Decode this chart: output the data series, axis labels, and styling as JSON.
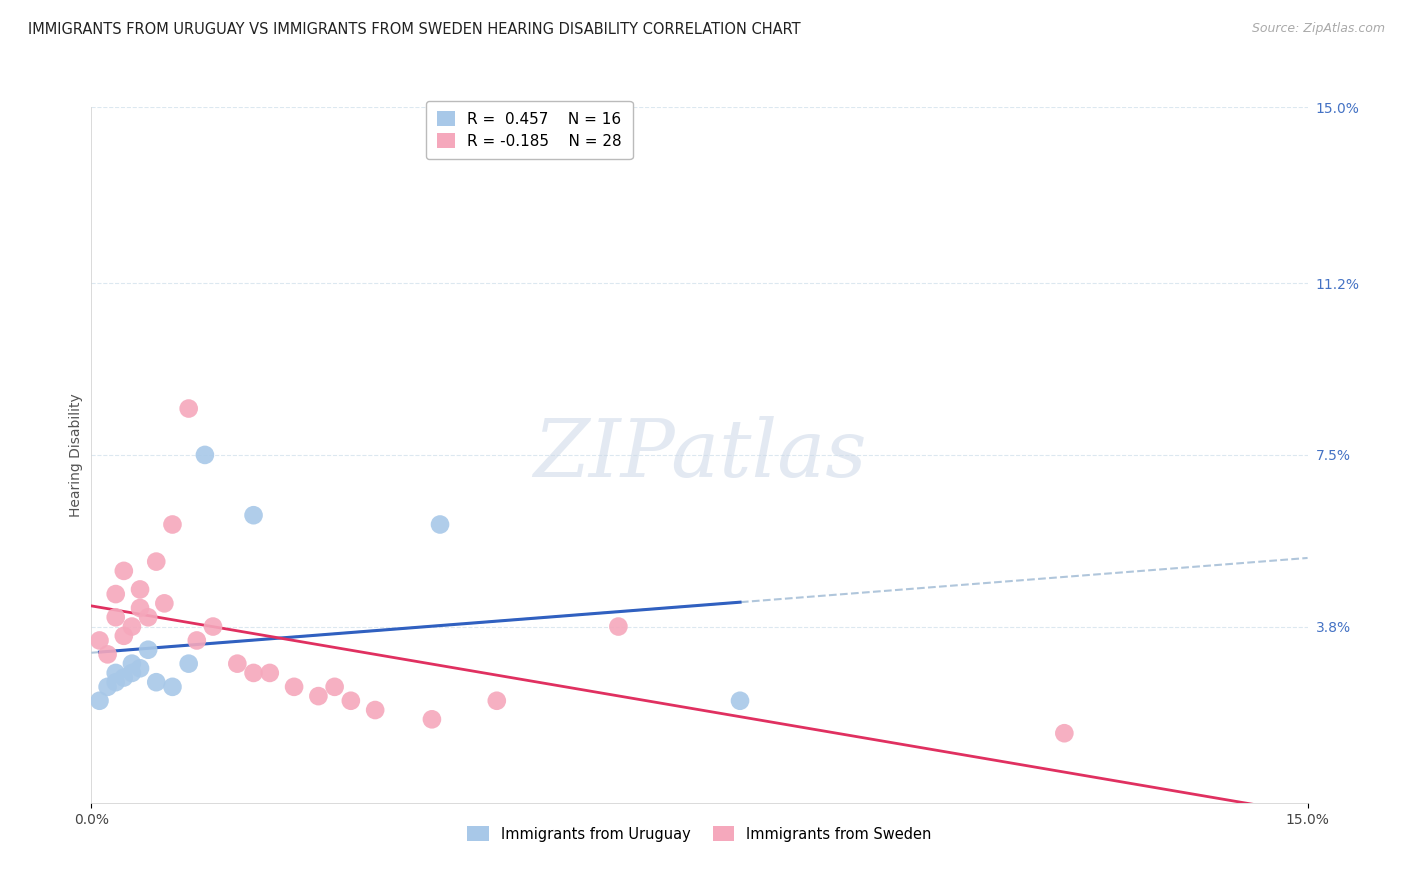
{
  "title": "IMMIGRANTS FROM URUGUAY VS IMMIGRANTS FROM SWEDEN HEARING DISABILITY CORRELATION CHART",
  "source_text": "Source: ZipAtlas.com",
  "ylabel": "Hearing Disability",
  "xlim": [
    0.0,
    0.15
  ],
  "ylim": [
    0.0,
    0.15
  ],
  "xtick_positions": [
    0.0,
    0.15
  ],
  "xtick_labels": [
    "0.0%",
    "15.0%"
  ],
  "ytick_positions_right": [
    0.038,
    0.075,
    0.112,
    0.15
  ],
  "ytick_labels_right": [
    "3.8%",
    "7.5%",
    "11.2%",
    "15.0%"
  ],
  "legend_top_labels": [
    "R =  0.457    N = 16",
    "R = -0.185    N = 28"
  ],
  "legend_top_colors": [
    "#a8c8e8",
    "#f5a8bc"
  ],
  "legend_bottom_labels": [
    "Immigrants from Uruguay",
    "Immigrants from Sweden"
  ],
  "legend_bottom_colors": [
    "#a8c8e8",
    "#f5a8bc"
  ],
  "uruguay_x": [
    0.001,
    0.002,
    0.003,
    0.003,
    0.004,
    0.005,
    0.005,
    0.006,
    0.007,
    0.008,
    0.01,
    0.012,
    0.014,
    0.02,
    0.043,
    0.08
  ],
  "uruguay_y": [
    0.022,
    0.025,
    0.026,
    0.028,
    0.027,
    0.028,
    0.03,
    0.029,
    0.033,
    0.026,
    0.025,
    0.03,
    0.075,
    0.062,
    0.06,
    0.022
  ],
  "sweden_x": [
    0.001,
    0.002,
    0.003,
    0.003,
    0.004,
    0.004,
    0.005,
    0.006,
    0.006,
    0.007,
    0.008,
    0.009,
    0.01,
    0.012,
    0.013,
    0.015,
    0.018,
    0.02,
    0.022,
    0.025,
    0.028,
    0.03,
    0.032,
    0.035,
    0.042,
    0.05,
    0.065,
    0.12
  ],
  "sweden_y": [
    0.035,
    0.032,
    0.04,
    0.045,
    0.036,
    0.05,
    0.038,
    0.046,
    0.042,
    0.04,
    0.052,
    0.043,
    0.06,
    0.085,
    0.035,
    0.038,
    0.03,
    0.028,
    0.028,
    0.025,
    0.023,
    0.025,
    0.022,
    0.02,
    0.018,
    0.022,
    0.038,
    0.015
  ],
  "blue_scatter_color": "#a8c8e8",
  "pink_scatter_color": "#f5a8bc",
  "blue_line_color": "#3060c0",
  "pink_line_color": "#e03060",
  "dashed_extend_color": "#a8c0d8",
  "grid_color": "#dce8f0",
  "background_color": "#ffffff",
  "watermark_color": "#ccd8e8",
  "title_fontsize": 10.5,
  "source_fontsize": 9,
  "legend_fontsize": 11,
  "ylabel_fontsize": 10,
  "tick_fontsize": 10,
  "right_tick_color": "#4472c4"
}
